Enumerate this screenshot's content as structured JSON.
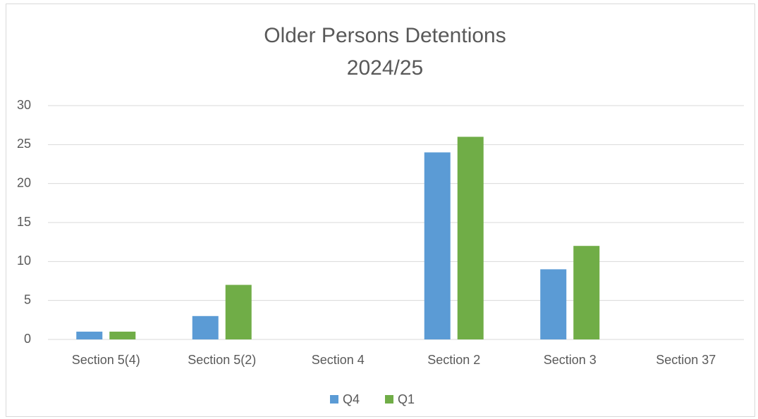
{
  "chart_data": {
    "type": "bar",
    "title": [
      "Older Persons Detentions",
      "2024/25"
    ],
    "categories": [
      "Section 5(4)",
      "Section 5(2)",
      "Section 4",
      "Section 2",
      "Section 3",
      "Section 37"
    ],
    "series": [
      {
        "name": "Q4",
        "color": "#5b9bd5",
        "values": [
          1,
          3,
          0,
          24,
          9,
          0
        ]
      },
      {
        "name": "Q1",
        "color": "#70ad47",
        "values": [
          1,
          7,
          0,
          26,
          12,
          0
        ]
      }
    ],
    "ylim": [
      0,
      30
    ],
    "yticks": [
      0,
      5,
      10,
      15,
      20,
      25,
      30
    ],
    "grid": true,
    "legend": "bottom"
  }
}
